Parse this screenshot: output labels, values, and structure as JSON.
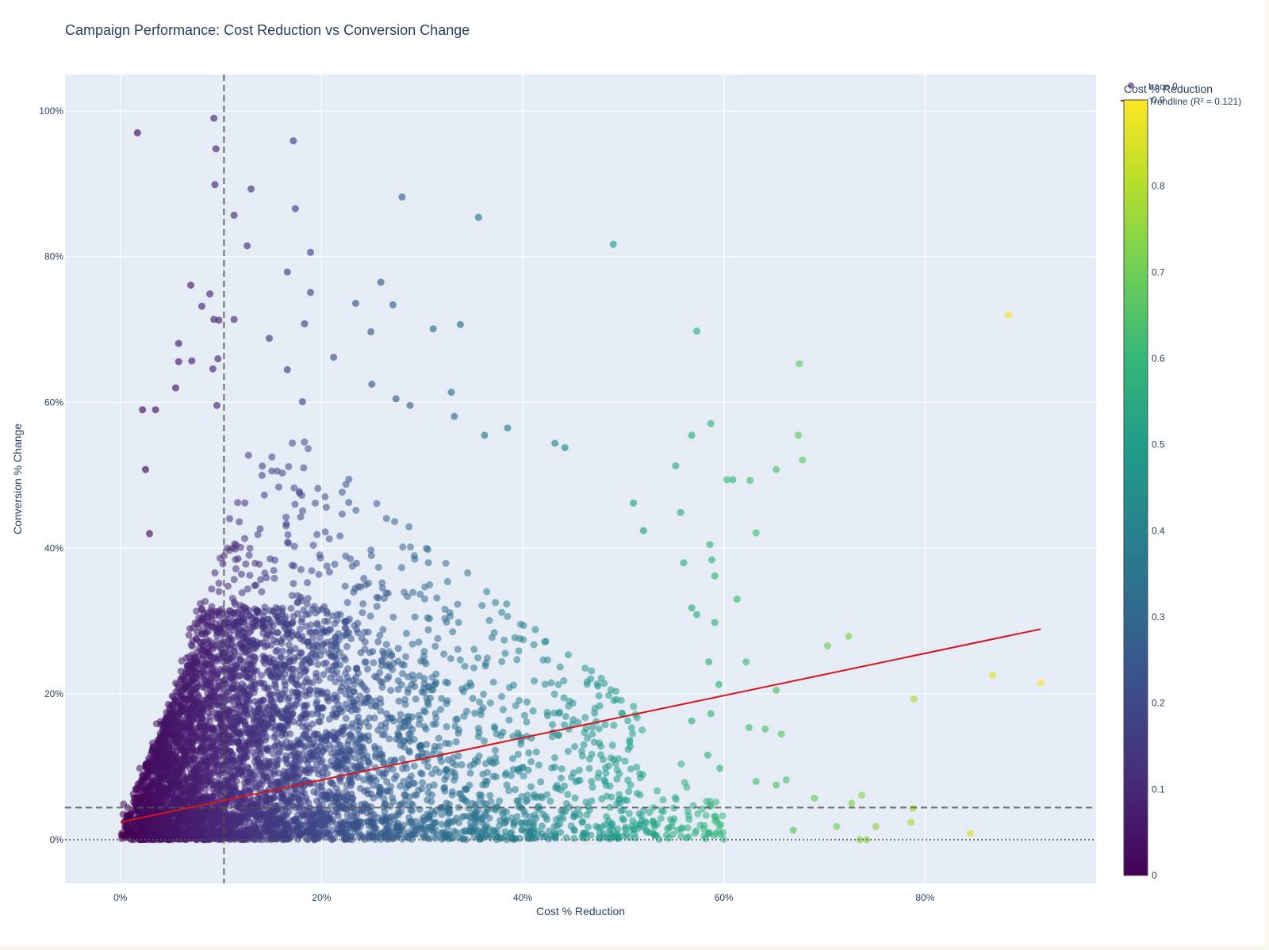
{
  "chart_data": {
    "type": "scatter",
    "title": "Campaign Performance: Cost Reduction vs Conversion Change",
    "xlabel": "Cost % Reduction",
    "ylabel": "Conversion % Change",
    "xlim": [
      -0.055,
      0.97
    ],
    "ylim": [
      -0.06,
      1.05
    ],
    "x_ticks": [
      0,
      0.2,
      0.4,
      0.6,
      0.8
    ],
    "x_tick_labels": [
      "0%",
      "20%",
      "40%",
      "60%",
      "80%"
    ],
    "y_ticks": [
      0,
      0.2,
      0.4,
      0.6,
      0.8,
      1.0
    ],
    "y_tick_labels": [
      "0%",
      "20%",
      "40%",
      "60%",
      "80%",
      "100%"
    ],
    "grid": true,
    "legend": {
      "placement": "top-right",
      "entries": [
        "trace 0",
        "Trendline (R² = 0.121)"
      ]
    },
    "colorbar": {
      "title": "Cost % Reduction",
      "range": [
        0,
        0.9
      ],
      "ticks": [
        0,
        0.1,
        0.2,
        0.3,
        0.4,
        0.5,
        0.6,
        0.7,
        0.8,
        0.9
      ],
      "tick_labels": [
        "0",
        "0.1",
        "0.2",
        "0.3",
        "0.4",
        "0.5",
        "0.6",
        "0.7",
        "0.8",
        "0.9"
      ],
      "colorscale": "viridis"
    },
    "reference_lines": [
      {
        "orientation": "vertical",
        "value": 0.103,
        "style": "dashed"
      },
      {
        "orientation": "horizontal",
        "value": 0.044,
        "style": "dashed"
      },
      {
        "orientation": "horizontal",
        "value": 0,
        "style": "dotted"
      }
    ],
    "trendline": {
      "name": "Trendline (R² = 0.121)",
      "color": "#d6141c",
      "x": [
        0,
        0.915
      ],
      "y": [
        0.024,
        0.289
      ]
    },
    "series": [
      {
        "name": "trace 0",
        "marker_opacity": 0.55,
        "notable_points": [
          [
            0.017,
            0.97
          ],
          [
            0.093,
            0.99
          ],
          [
            0.095,
            0.948
          ],
          [
            0.094,
            0.899
          ],
          [
            0.172,
            0.959
          ],
          [
            0.13,
            0.893
          ],
          [
            0.113,
            0.857
          ],
          [
            0.174,
            0.866
          ],
          [
            0.28,
            0.882
          ],
          [
            0.356,
            0.854
          ],
          [
            0.126,
            0.815
          ],
          [
            0.189,
            0.806
          ],
          [
            0.49,
            0.817
          ],
          [
            0.07,
            0.761
          ],
          [
            0.166,
            0.779
          ],
          [
            0.259,
            0.765
          ],
          [
            0.089,
            0.749
          ],
          [
            0.189,
            0.751
          ],
          [
            0.081,
            0.732
          ],
          [
            0.234,
            0.736
          ],
          [
            0.271,
            0.734
          ],
          [
            0.573,
            0.698
          ],
          [
            0.338,
            0.707
          ],
          [
            0.883,
            0.72
          ],
          [
            0.675,
            0.653
          ],
          [
            0.058,
            0.681
          ],
          [
            0.148,
            0.688
          ],
          [
            0.249,
            0.697
          ],
          [
            0.311,
            0.701
          ],
          [
            0.093,
            0.714
          ],
          [
            0.098,
            0.713
          ],
          [
            0.113,
            0.714
          ],
          [
            0.183,
            0.708
          ],
          [
            0.058,
            0.656
          ],
          [
            0.071,
            0.657
          ],
          [
            0.055,
            0.62
          ],
          [
            0.092,
            0.646
          ],
          [
            0.166,
            0.645
          ],
          [
            0.097,
            0.66
          ],
          [
            0.212,
            0.662
          ],
          [
            0.25,
            0.625
          ],
          [
            0.329,
            0.614
          ],
          [
            0.022,
            0.59
          ],
          [
            0.035,
            0.59
          ],
          [
            0.096,
            0.596
          ],
          [
            0.181,
            0.601
          ],
          [
            0.274,
            0.605
          ],
          [
            0.288,
            0.596
          ],
          [
            0.332,
            0.581
          ],
          [
            0.587,
            0.571
          ],
          [
            0.568,
            0.555
          ],
          [
            0.674,
            0.555
          ],
          [
            0.678,
            0.521
          ],
          [
            0.552,
            0.513
          ],
          [
            0.652,
            0.508
          ],
          [
            0.603,
            0.494
          ],
          [
            0.609,
            0.494
          ],
          [
            0.626,
            0.493
          ],
          [
            0.432,
            0.544
          ],
          [
            0.442,
            0.538
          ],
          [
            0.385,
            0.565
          ],
          [
            0.362,
            0.555
          ],
          [
            0.025,
            0.508
          ],
          [
            0.029,
            0.42
          ],
          [
            0.52,
            0.424
          ],
          [
            0.557,
            0.449
          ],
          [
            0.51,
            0.462
          ],
          [
            0.632,
            0.421
          ],
          [
            0.586,
            0.405
          ],
          [
            0.588,
            0.384
          ],
          [
            0.56,
            0.38
          ],
          [
            0.591,
            0.362
          ],
          [
            0.613,
            0.33
          ],
          [
            0.568,
            0.318
          ],
          [
            0.573,
            0.309
          ],
          [
            0.591,
            0.298
          ],
          [
            0.703,
            0.266
          ],
          [
            0.724,
            0.279
          ],
          [
            0.585,
            0.244
          ],
          [
            0.622,
            0.244
          ],
          [
            0.595,
            0.213
          ],
          [
            0.652,
            0.205
          ],
          [
            0.867,
            0.226
          ],
          [
            0.915,
            0.215
          ],
          [
            0.789,
            0.193
          ],
          [
            0.568,
            0.163
          ],
          [
            0.587,
            0.173
          ],
          [
            0.625,
            0.154
          ],
          [
            0.641,
            0.152
          ],
          [
            0.657,
            0.145
          ],
          [
            0.584,
            0.116
          ],
          [
            0.596,
            0.098
          ],
          [
            0.662,
            0.082
          ],
          [
            0.652,
            0.075
          ],
          [
            0.632,
            0.08
          ],
          [
            0.737,
            0.061
          ],
          [
            0.727,
            0.05
          ],
          [
            0.69,
            0.057
          ],
          [
            0.788,
            0.043
          ],
          [
            0.786,
            0.024
          ],
          [
            0.751,
            0.018
          ],
          [
            0.712,
            0.018
          ],
          [
            0.845,
            0.009
          ],
          [
            0.669,
            0.013
          ],
          [
            0.735,
            0.0
          ],
          [
            0.742,
            0.0
          ]
        ]
      }
    ]
  }
}
